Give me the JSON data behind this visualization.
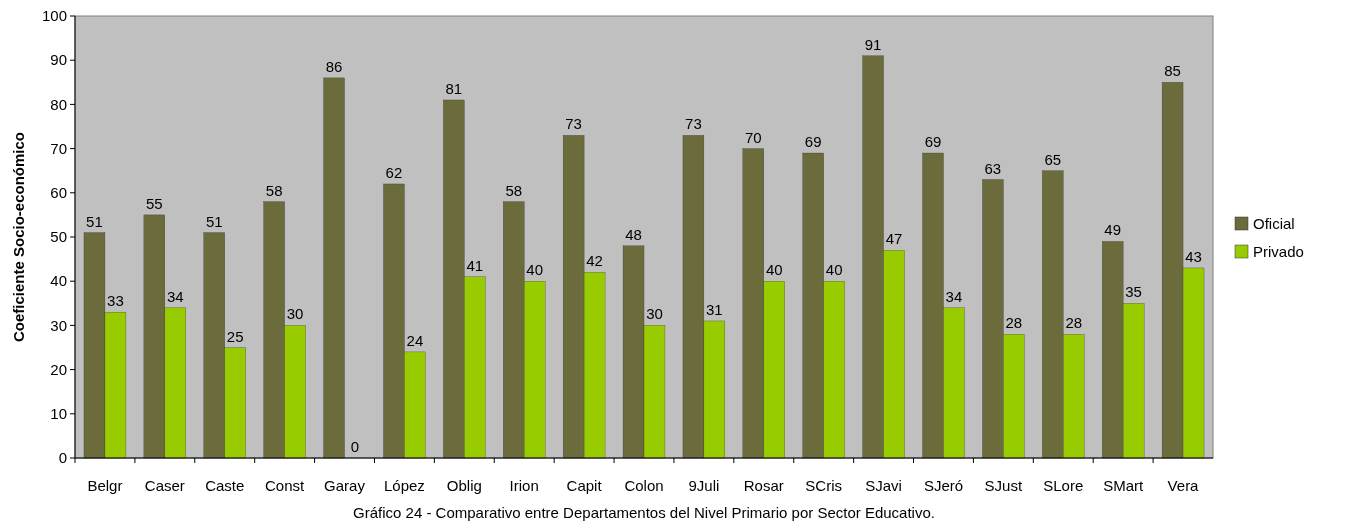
{
  "chart_data": {
    "type": "bar",
    "ylabel": "Coeficiente Socio-económico",
    "categories": [
      "Belgr",
      "Caser",
      "Caste",
      "Const",
      "Garay",
      "López",
      "Oblig",
      "Irion",
      "Capit",
      "Colon",
      "9Juli",
      "Rosar",
      "SCris",
      "SJavi",
      "SJeró",
      "SJust",
      "SLore",
      "SMart",
      "Vera"
    ],
    "series": [
      {
        "name": "Oficial",
        "color": "#6b6b3b",
        "values": [
          51,
          55,
          51,
          58,
          86,
          62,
          81,
          58,
          73,
          48,
          73,
          70,
          69,
          91,
          69,
          63,
          65,
          49,
          85
        ]
      },
      {
        "name": "Privado",
        "color": "#99cc00",
        "values": [
          33,
          34,
          25,
          30,
          0,
          24,
          41,
          40,
          42,
          30,
          31,
          40,
          40,
          47,
          34,
          28,
          28,
          35,
          43
        ]
      }
    ],
    "ylim": [
      0,
      100
    ],
    "yticks": [
      0,
      10,
      20,
      30,
      40,
      50,
      60,
      70,
      80,
      90,
      100
    ],
    "data_labels": true,
    "legend": "right",
    "grid": false,
    "annotations": [
      "Gráfico 24 - Comparativo entre Departamentos del Nivel Primario por Sector Educativo."
    ]
  }
}
